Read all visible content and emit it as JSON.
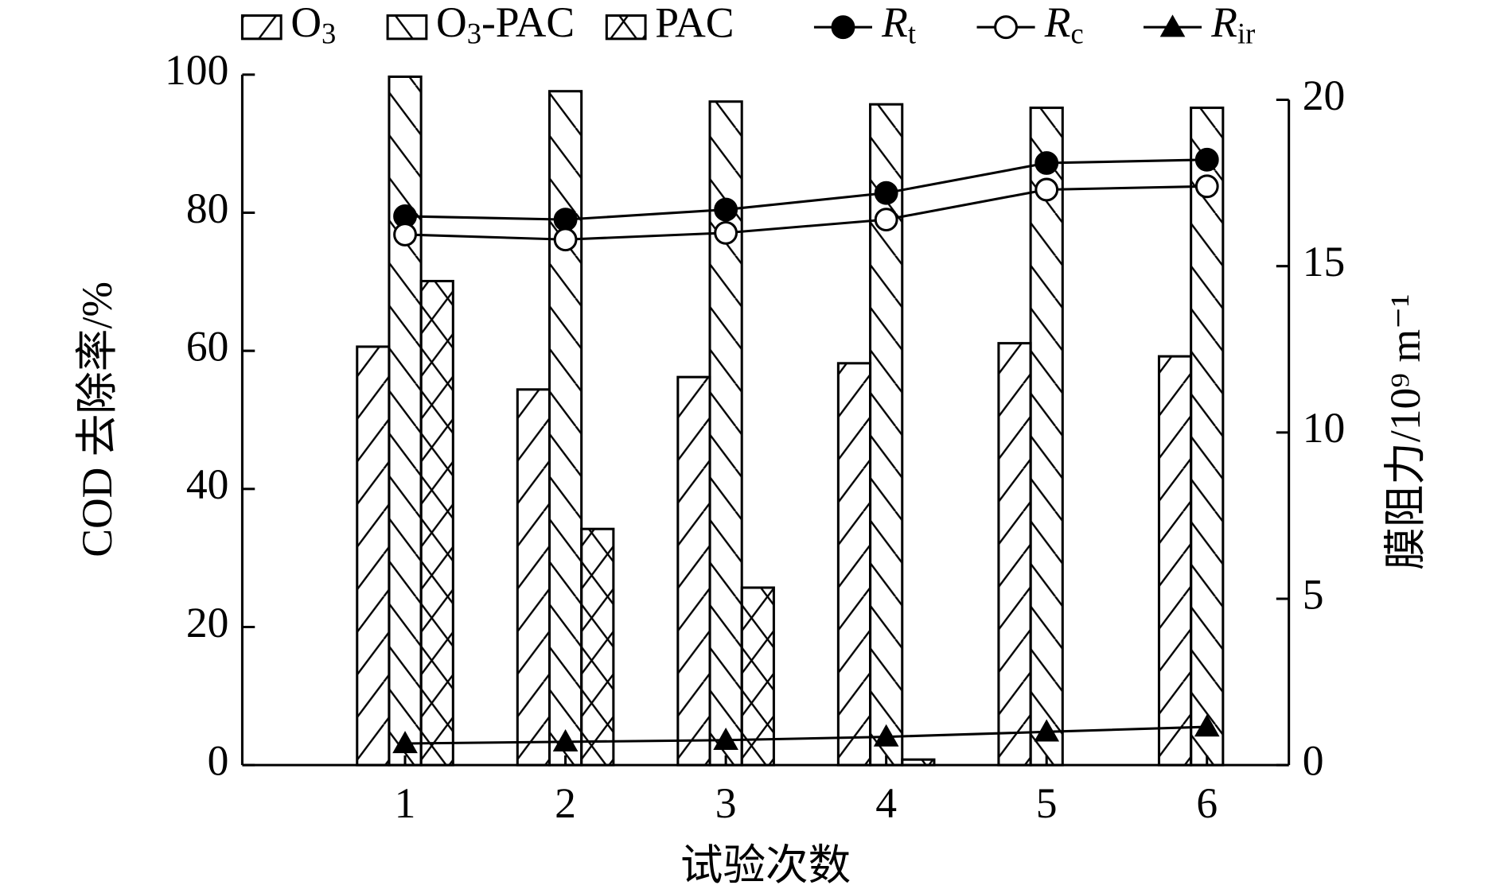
{
  "chart_data": {
    "type": "bar",
    "categories": [
      "1",
      "2",
      "3",
      "4",
      "5",
      "6"
    ],
    "xlabel": "试验次数",
    "ylabel": "COD 去除率/%",
    "y2label": "膜阻力/10⁹ m⁻¹",
    "ylim": [
      0,
      100
    ],
    "yticks": [
      0,
      20,
      40,
      60,
      80,
      100
    ],
    "y2lim": [
      0,
      20
    ],
    "y2ticks": [
      0,
      5,
      10,
      15,
      20
    ],
    "series": [
      {
        "name": "O3",
        "type": "bar",
        "hatch": "/",
        "color": "#000000",
        "values": [
          60.6,
          54.4,
          56.2,
          58.2,
          61.1,
          59.2
        ]
      },
      {
        "name": "O3-PAC",
        "type": "bar",
        "hatch": "\\",
        "color": "#000000",
        "values": [
          99.7,
          97.6,
          96.1,
          95.7,
          95.2,
          95.2
        ]
      },
      {
        "name": "PAC",
        "type": "bar",
        "hatch": "x",
        "color": "#000000",
        "values": [
          70.1,
          34.2,
          25.7,
          0.8,
          0,
          0
        ]
      },
      {
        "name": "Rt",
        "type": "line",
        "axis": "y2",
        "marker": "filled-circle",
        "color": "#000000",
        "values": [
          16.5,
          16.4,
          16.7,
          17.2,
          18.1,
          18.2
        ]
      },
      {
        "name": "Rc",
        "type": "line",
        "axis": "y2",
        "marker": "open-circle",
        "color": "#000000",
        "values": [
          15.95,
          15.8,
          16.0,
          16.4,
          17.3,
          17.4
        ]
      },
      {
        "name": "Rir",
        "type": "line",
        "axis": "y2",
        "marker": "triangle",
        "color": "#000000",
        "values": [
          0.65,
          0.7,
          0.75,
          0.85,
          1.0,
          1.15
        ]
      }
    ]
  }
}
